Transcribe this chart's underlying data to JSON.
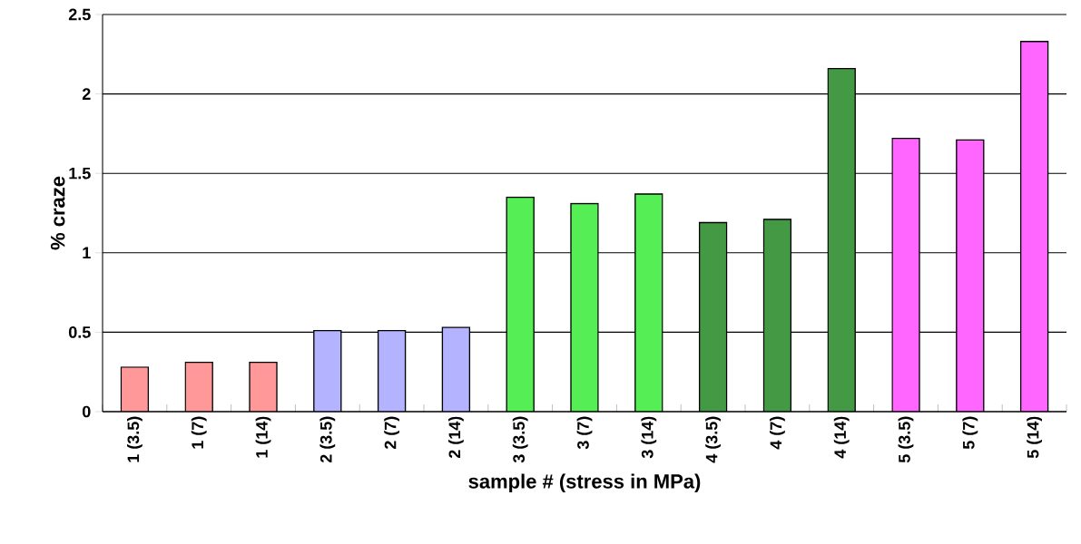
{
  "chart_data": {
    "type": "bar",
    "xlabel": "sample # (stress in MPa)",
    "ylabel": "% craze",
    "categories": [
      "1 (3.5)",
      "1 (7)",
      "1 (14)",
      "2 (3.5)",
      "2 (7)",
      "2 (14)",
      "3 (3.5)",
      "3 (7)",
      "3 (14)",
      "4 (3.5)",
      "4 (7)",
      "4 (14)",
      "5 (3.5)",
      "5 (7)",
      "5 (14)"
    ],
    "values": [
      0.28,
      0.31,
      0.31,
      0.51,
      0.51,
      0.53,
      1.35,
      1.31,
      1.37,
      1.19,
      1.21,
      2.16,
      1.72,
      1.71,
      2.33
    ],
    "colors": [
      "#ff9999",
      "#ff9999",
      "#ff9999",
      "#b3b3ff",
      "#b3b3ff",
      "#b3b3ff",
      "#55ee55",
      "#55ee55",
      "#55ee55",
      "#449944",
      "#449944",
      "#449944",
      "#ff66ff",
      "#ff66ff",
      "#ff66ff"
    ],
    "ylim": [
      0,
      2.5
    ],
    "yticks": [
      0,
      0.5,
      1,
      1.5,
      2,
      2.5
    ],
    "grid": "y"
  }
}
